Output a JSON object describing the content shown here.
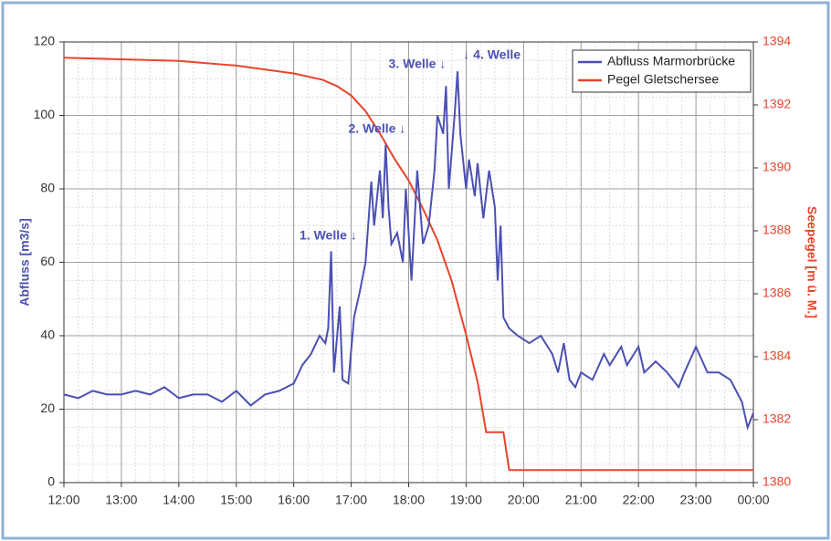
{
  "chart_data": {
    "type": "line",
    "xlim": [
      12,
      24
    ],
    "xticks": [
      {
        "value": 12,
        "label": "12:00"
      },
      {
        "value": 13,
        "label": "13:00"
      },
      {
        "value": 14,
        "label": "14:00"
      },
      {
        "value": 15,
        "label": "15:00"
      },
      {
        "value": 16,
        "label": "16:00"
      },
      {
        "value": 17,
        "label": "17:00"
      },
      {
        "value": 18,
        "label": "18:00"
      },
      {
        "value": 19,
        "label": "19:00"
      },
      {
        "value": 20,
        "label": "20:00"
      },
      {
        "value": 21,
        "label": "21:00"
      },
      {
        "value": 22,
        "label": "22:00"
      },
      {
        "value": 23,
        "label": "23:00"
      },
      {
        "value": 24,
        "label": "00:00"
      }
    ],
    "ylabel": "Abfluss [m3/s]",
    "ylim": [
      0,
      120
    ],
    "yticks": [
      0,
      20,
      40,
      60,
      80,
      100,
      120
    ],
    "y2label": "Seepegel [m ü. M.]",
    "y2lim": [
      1380,
      1394
    ],
    "y2ticks": [
      1380,
      1382,
      1384,
      1386,
      1388,
      1390,
      1392,
      1394
    ],
    "grid": true,
    "legend": "upper right",
    "annotations": [
      "1. Welle ↓",
      "2. Welle ↓",
      "3. Welle ↓",
      "↓ 4. Welle"
    ],
    "series": [
      {
        "name": "Abfluss Marmorbrücke",
        "color": "#4b50b4",
        "x": [
          12,
          12.25,
          12.5,
          12.75,
          13,
          13.25,
          13.5,
          13.75,
          14,
          14.25,
          14.5,
          14.75,
          15,
          15.25,
          15.5,
          15.75,
          16,
          16.15,
          16.3,
          16.45,
          16.55,
          16.6,
          16.65,
          16.7,
          16.8,
          16.85,
          16.95,
          17.05,
          17.15,
          17.25,
          17.35,
          17.4,
          17.5,
          17.55,
          17.6,
          17.65,
          17.7,
          17.8,
          17.9,
          17.95,
          18.0,
          18.05,
          18.15,
          18.25,
          18.35,
          18.45,
          18.5,
          18.6,
          18.65,
          18.7,
          18.8,
          18.85,
          18.9,
          19.0,
          19.05,
          19.15,
          19.2,
          19.3,
          19.4,
          19.5,
          19.55,
          19.6,
          19.65,
          19.75,
          19.9,
          20.1,
          20.3,
          20.5,
          20.6,
          20.7,
          20.8,
          20.9,
          21.0,
          21.2,
          21.4,
          21.5,
          21.7,
          21.8,
          22.0,
          22.1,
          22.3,
          22.5,
          22.7,
          22.8,
          23.0,
          23.2,
          23.4,
          23.6,
          23.8,
          23.9,
          24.0
        ],
        "values": [
          24,
          23,
          25,
          24,
          24,
          25,
          24,
          26,
          23,
          24,
          24,
          22,
          25,
          21,
          24,
          25,
          27,
          32,
          35,
          40,
          38,
          42,
          63,
          30,
          48,
          28,
          27,
          45,
          52,
          60,
          82,
          70,
          85,
          72,
          92,
          75,
          65,
          68,
          60,
          80,
          68,
          55,
          85,
          65,
          70,
          85,
          100,
          95,
          108,
          80,
          100,
          112,
          95,
          80,
          88,
          78,
          87,
          72,
          85,
          75,
          55,
          70,
          45,
          42,
          40,
          38,
          40,
          35,
          30,
          38,
          28,
          26,
          30,
          28,
          35,
          32,
          37,
          32,
          37,
          30,
          33,
          30,
          26,
          30,
          37,
          30,
          30,
          28,
          22,
          15,
          19
        ]
      },
      {
        "name": "Pegel Gletschersee",
        "color": "#e8442a",
        "axis": "y2",
        "x": [
          12,
          13,
          14,
          15,
          16,
          16.5,
          16.75,
          17,
          17.25,
          17.5,
          17.75,
          18,
          18.25,
          18.5,
          18.75,
          19,
          19.2,
          19.35,
          19.65,
          19.75,
          24
        ],
        "values": [
          1393.5,
          1393.45,
          1393.4,
          1393.25,
          1393.0,
          1392.8,
          1392.6,
          1392.3,
          1391.8,
          1391.1,
          1390.3,
          1389.6,
          1388.7,
          1387.7,
          1386.4,
          1384.7,
          1383.2,
          1381.6,
          1381.6,
          1380.4,
          1380.4
        ]
      }
    ]
  }
}
